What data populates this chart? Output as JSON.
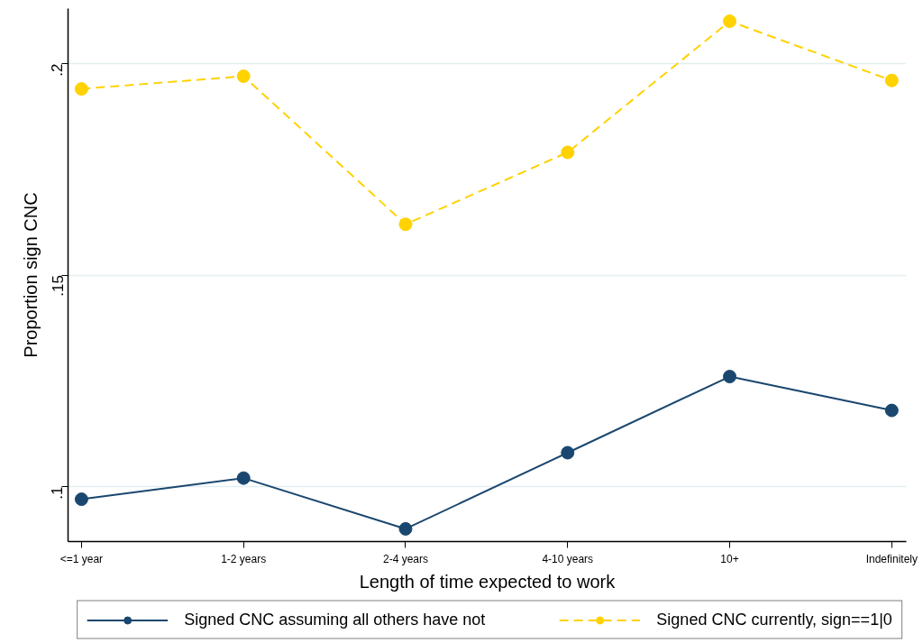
{
  "chart_data": {
    "type": "line",
    "xlabel": "Length of time expected to work",
    "ylabel": "Proportion sign CNC",
    "categories": [
      "<=1 year",
      "1-2 years",
      "2-4 years",
      "4-10 years",
      "10+",
      "Indefinitely"
    ],
    "series": [
      {
        "name": "Signed CNC assuming all others have not",
        "color": "#1a476f",
        "line_style": "solid",
        "values": [
          0.097,
          0.102,
          0.09,
          0.108,
          0.126,
          0.118
        ]
      },
      {
        "name": "Signed CNC currently, sign==1|0",
        "color": "#ffd200",
        "line_style": "dashed",
        "values": [
          0.194,
          0.197,
          0.162,
          0.179,
          0.21,
          0.196
        ]
      }
    ],
    "ylim": [
      0.087,
      0.213
    ],
    "yticks": [
      {
        "value": 0.1,
        "label": ".1"
      },
      {
        "value": 0.15,
        "label": ".15"
      },
      {
        "value": 0.2,
        "label": ".2"
      }
    ],
    "grid": "y",
    "legend": "bottom",
    "marker": "circle"
  }
}
